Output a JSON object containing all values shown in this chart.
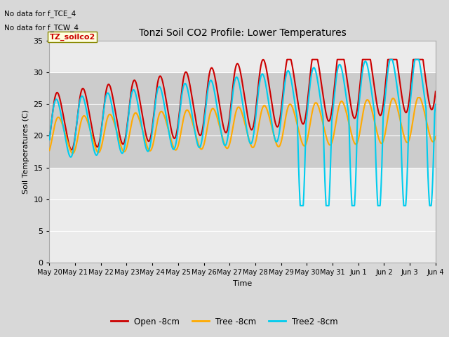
{
  "title": "Tonzi Soil CO2 Profile: Lower Temperatures",
  "ylabel": "Soil Temperatures (C)",
  "xlabel": "Time",
  "annotations": [
    "No data for f_TCE_4",
    "No data for f_TCW_4"
  ],
  "box_label": "TZ_soilco2",
  "ylim": [
    0,
    35
  ],
  "yticks": [
    0,
    5,
    10,
    15,
    20,
    25,
    30,
    35
  ],
  "shade_band": [
    15,
    30
  ],
  "legend": [
    "Open -8cm",
    "Tree -8cm",
    "Tree2 -8cm"
  ],
  "colors": [
    "#cc0000",
    "#ffaa00",
    "#00ccee"
  ],
  "line_width": 1.5,
  "tick_labels": [
    "May 20",
    "May 21",
    "May 22",
    "May 23",
    "May 24",
    "May 25",
    "May 26",
    "May 27",
    "May 28",
    "May 29",
    "May 30",
    "May 31",
    "Jun 1",
    "Jun 2",
    "Jun 3",
    "Jun 4"
  ],
  "bg_color": "#d8d8d8",
  "plot_bg": "#ebebeb",
  "shade_color": "#cccccc"
}
